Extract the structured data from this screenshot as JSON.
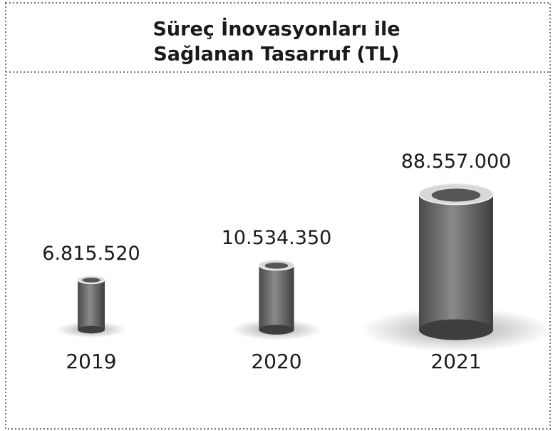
{
  "chart_data": {
    "type": "tube",
    "title_lines": [
      "Süreç İnovasyonları ile",
      "Sağlanan Tasarruf (TL)"
    ],
    "categories": [
      "2019",
      "2020",
      "2021"
    ],
    "values": [
      6815520,
      10534350,
      88557000
    ],
    "value_labels": [
      "6.815.520",
      "10.534.350",
      "88.557.000"
    ],
    "color": "#6e6e6e"
  }
}
